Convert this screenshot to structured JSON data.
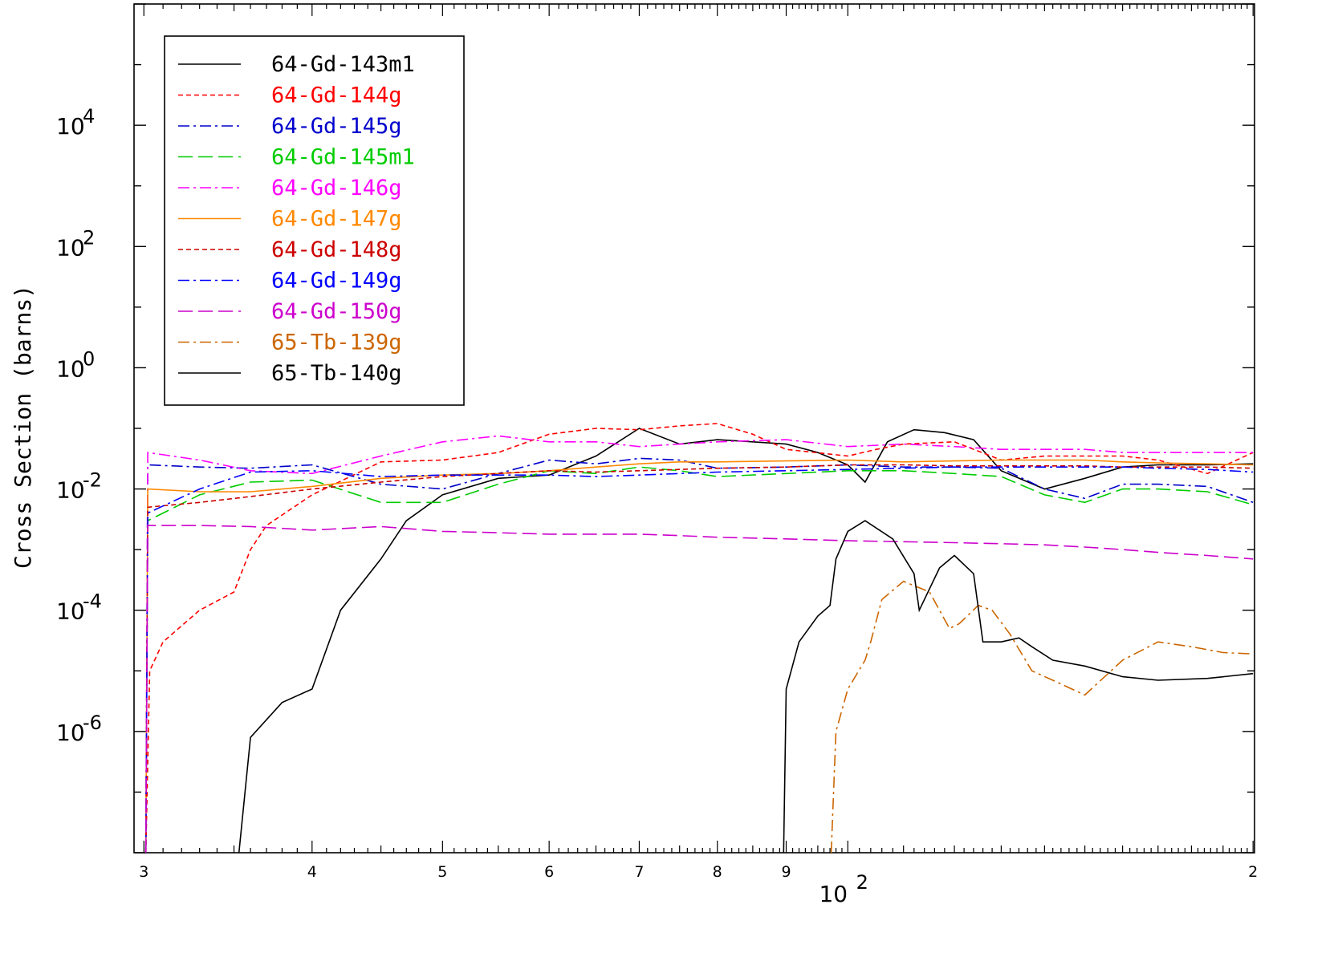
{
  "chart_data": {
    "type": "line",
    "title": "",
    "xlabel": "",
    "ylabel": "Cross Section (barns)",
    "x_scale": "log",
    "y_scale": "log",
    "xlim": [
      29.5,
      200.5
    ],
    "ylim": [
      1e-08,
      1000000.0
    ],
    "y_major_ticks": [
      {
        "value": 10000.0,
        "base": "10",
        "exp": "4"
      },
      {
        "value": 100.0,
        "base": "10",
        "exp": "2"
      },
      {
        "value": 1,
        "base": "10",
        "exp": "0"
      },
      {
        "value": 0.01,
        "base": "10",
        "exp": "-2"
      },
      {
        "value": 0.0001,
        "base": "10",
        "exp": "-4"
      },
      {
        "value": 1e-06,
        "base": "10",
        "exp": "-6"
      }
    ],
    "x_tick_labels": [
      {
        "value": 30,
        "label": "3"
      },
      {
        "value": 40,
        "label": "4"
      },
      {
        "value": 50,
        "label": "5"
      },
      {
        "value": 60,
        "label": "6"
      },
      {
        "value": 70,
        "label": "7"
      },
      {
        "value": 80,
        "label": "8"
      },
      {
        "value": 90,
        "label": "9"
      },
      {
        "value": 200,
        "label": "2"
      }
    ],
    "x_decade_label": {
      "value": 100,
      "base": "10",
      "exp": "2"
    },
    "grid": false,
    "legend_position": "top-left",
    "series": [
      {
        "name": "64-Gd-143m1",
        "color": "#000000",
        "dash": "solid",
        "x": [
          35.3,
          36,
          38,
          40,
          42,
          45,
          47,
          50,
          55,
          60,
          65,
          70,
          75,
          80,
          85,
          90,
          95,
          100,
          103,
          107,
          112,
          118,
          124,
          130,
          140,
          150,
          160,
          170,
          185,
          200
        ],
        "y": [
          1e-08,
          8e-07,
          3e-06,
          5e-06,
          0.0001,
          0.0007,
          0.003,
          0.008,
          0.015,
          0.017,
          0.035,
          0.1,
          0.055,
          0.065,
          0.06,
          0.055,
          0.04,
          0.025,
          0.013,
          0.06,
          0.095,
          0.085,
          0.065,
          0.02,
          0.01,
          0.015,
          0.023,
          0.025,
          0.025,
          0.026
        ]
      },
      {
        "name": "64-Gd-144g",
        "color": "#ff0000",
        "dash": "short",
        "x": [
          30.1,
          30.3,
          31,
          33,
          35,
          36,
          37,
          40,
          45,
          50,
          55,
          60,
          65,
          70,
          75,
          80,
          85,
          90,
          100,
          105,
          110,
          120,
          130,
          140,
          150,
          160,
          170,
          185,
          200
        ],
        "y": [
          1e-08,
          1e-05,
          3e-05,
          0.0001,
          0.0002,
          0.001,
          0.0025,
          0.008,
          0.028,
          0.03,
          0.04,
          0.08,
          0.1,
          0.095,
          0.11,
          0.12,
          0.08,
          0.045,
          0.035,
          0.045,
          0.055,
          0.06,
          0.03,
          0.035,
          0.035,
          0.035,
          0.03,
          0.018,
          0.04
        ]
      },
      {
        "name": "64-Gd-145g",
        "color": "#0000cc",
        "dash": "dashdot",
        "x": [
          30.1,
          30.2,
          33,
          36,
          40,
          45,
          50,
          55,
          60,
          65,
          70,
          75,
          80,
          90,
          100,
          110,
          120,
          130,
          140,
          150,
          160,
          170,
          185,
          200
        ],
        "y": [
          1e-08,
          0.025,
          0.023,
          0.022,
          0.025,
          0.012,
          0.01,
          0.018,
          0.03,
          0.026,
          0.032,
          0.03,
          0.022,
          0.023,
          0.025,
          0.023,
          0.023,
          0.022,
          0.01,
          0.007,
          0.012,
          0.012,
          0.011,
          0.006
        ]
      },
      {
        "name": "64-Gd-145m1",
        "color": "#00cc00",
        "dash": "long",
        "x": [
          30.1,
          30.2,
          33,
          36,
          40,
          45,
          50,
          55,
          60,
          65,
          70,
          75,
          80,
          90,
          100,
          110,
          120,
          130,
          140,
          150,
          160,
          170,
          185,
          200
        ],
        "y": [
          1e-08,
          0.003,
          0.008,
          0.013,
          0.014,
          0.006,
          0.006,
          0.012,
          0.02,
          0.018,
          0.023,
          0.02,
          0.016,
          0.018,
          0.02,
          0.02,
          0.018,
          0.016,
          0.008,
          0.006,
          0.01,
          0.01,
          0.009,
          0.0055
        ]
      },
      {
        "name": "64-Gd-146g",
        "color": "#ff00ff",
        "dash": "dashdot",
        "x": [
          30.1,
          30.2,
          33,
          36,
          40,
          45,
          50,
          55,
          60,
          65,
          70,
          75,
          80,
          90,
          100,
          110,
          120,
          130,
          140,
          150,
          160,
          170,
          185,
          200
        ],
        "y": [
          1e-08,
          0.04,
          0.03,
          0.02,
          0.018,
          0.035,
          0.06,
          0.075,
          0.06,
          0.06,
          0.05,
          0.055,
          0.06,
          0.065,
          0.05,
          0.055,
          0.05,
          0.045,
          0.045,
          0.045,
          0.04,
          0.04,
          0.04,
          0.04
        ]
      },
      {
        "name": "64-Gd-147g",
        "color": "#ff8800",
        "dash": "solid",
        "x": [
          30.1,
          30.2,
          33,
          36,
          40,
          45,
          50,
          55,
          60,
          65,
          70,
          75,
          80,
          90,
          100,
          110,
          120,
          130,
          140,
          150,
          160,
          170,
          185,
          200
        ],
        "y": [
          1e-08,
          0.01,
          0.009,
          0.009,
          0.011,
          0.015,
          0.017,
          0.018,
          0.02,
          0.023,
          0.026,
          0.028,
          0.028,
          0.029,
          0.03,
          0.028,
          0.029,
          0.03,
          0.03,
          0.03,
          0.028,
          0.027,
          0.026,
          0.025
        ]
      },
      {
        "name": "64-Gd-148g",
        "color": "#cc0000",
        "dash": "short",
        "x": [
          30.1,
          30.2,
          33,
          36,
          40,
          45,
          50,
          55,
          60,
          65,
          70,
          75,
          80,
          90,
          100,
          110,
          120,
          130,
          140,
          150,
          160,
          170,
          185,
          200
        ],
        "y": [
          1e-08,
          0.005,
          0.006,
          0.0075,
          0.01,
          0.013,
          0.016,
          0.018,
          0.02,
          0.019,
          0.02,
          0.021,
          0.022,
          0.023,
          0.025,
          0.025,
          0.024,
          0.024,
          0.024,
          0.024,
          0.023,
          0.023,
          0.023,
          0.022
        ]
      },
      {
        "name": "64-Gd-149g",
        "color": "#0000ff",
        "dash": "dashdot",
        "x": [
          30.1,
          30.2,
          33,
          36,
          40,
          45,
          50,
          55,
          60,
          65,
          70,
          75,
          80,
          90,
          100,
          110,
          120,
          130,
          140,
          150,
          160,
          170,
          185,
          200
        ],
        "y": [
          1e-08,
          0.004,
          0.01,
          0.019,
          0.02,
          0.016,
          0.017,
          0.017,
          0.017,
          0.016,
          0.017,
          0.018,
          0.019,
          0.02,
          0.021,
          0.022,
          0.023,
          0.023,
          0.023,
          0.023,
          0.023,
          0.022,
          0.021,
          0.019
        ]
      },
      {
        "name": "64-Gd-150g",
        "color": "#cc00cc",
        "dash": "long",
        "x": [
          30.1,
          30.2,
          33,
          36,
          40,
          45,
          50,
          55,
          60,
          65,
          70,
          75,
          80,
          90,
          100,
          110,
          120,
          130,
          140,
          150,
          160,
          170,
          185,
          200
        ],
        "y": [
          1e-08,
          0.0025,
          0.0025,
          0.0024,
          0.0021,
          0.0024,
          0.002,
          0.0019,
          0.0018,
          0.0018,
          0.0018,
          0.0017,
          0.0016,
          0.0015,
          0.0014,
          0.00135,
          0.0013,
          0.00125,
          0.0012,
          0.0011,
          0.001,
          0.0009,
          0.0008,
          0.0007
        ]
      },
      {
        "name": "65-Tb-139g",
        "color": "#cc6600",
        "dash": "dashdot",
        "x": [
          97.2,
          98,
          100,
          103,
          104,
          106,
          110,
          115,
          119,
          121,
          125,
          128,
          132,
          137,
          142,
          150,
          160,
          170,
          180,
          190,
          200
        ],
        "y": [
          1e-08,
          1e-06,
          5e-06,
          1.5e-05,
          3e-05,
          0.00015,
          0.0003,
          0.0002,
          5e-05,
          6e-05,
          0.00012,
          0.0001,
          4e-05,
          1e-05,
          7e-06,
          4e-06,
          1.5e-05,
          3e-05,
          2.5e-05,
          2e-05,
          1.9e-05
        ]
      },
      {
        "name": "65-Tb-140g",
        "color": "#000000",
        "dash": "solid",
        "x": [
          89.6,
          90,
          92,
          95,
          97,
          98,
          100,
          103,
          108,
          112,
          113,
          117,
          120,
          124,
          126,
          130,
          134,
          137,
          142,
          150,
          160,
          170,
          185,
          200
        ],
        "y": [
          1e-08,
          5e-06,
          3e-05,
          8e-05,
          0.00012,
          0.0007,
          0.002,
          0.003,
          0.0015,
          0.0004,
          0.0001,
          0.0005,
          0.0008,
          0.0004,
          3e-05,
          3e-05,
          3.5e-05,
          2.5e-05,
          1.5e-05,
          1.2e-05,
          8e-06,
          7e-06,
          7.5e-06,
          9e-06
        ]
      }
    ]
  }
}
